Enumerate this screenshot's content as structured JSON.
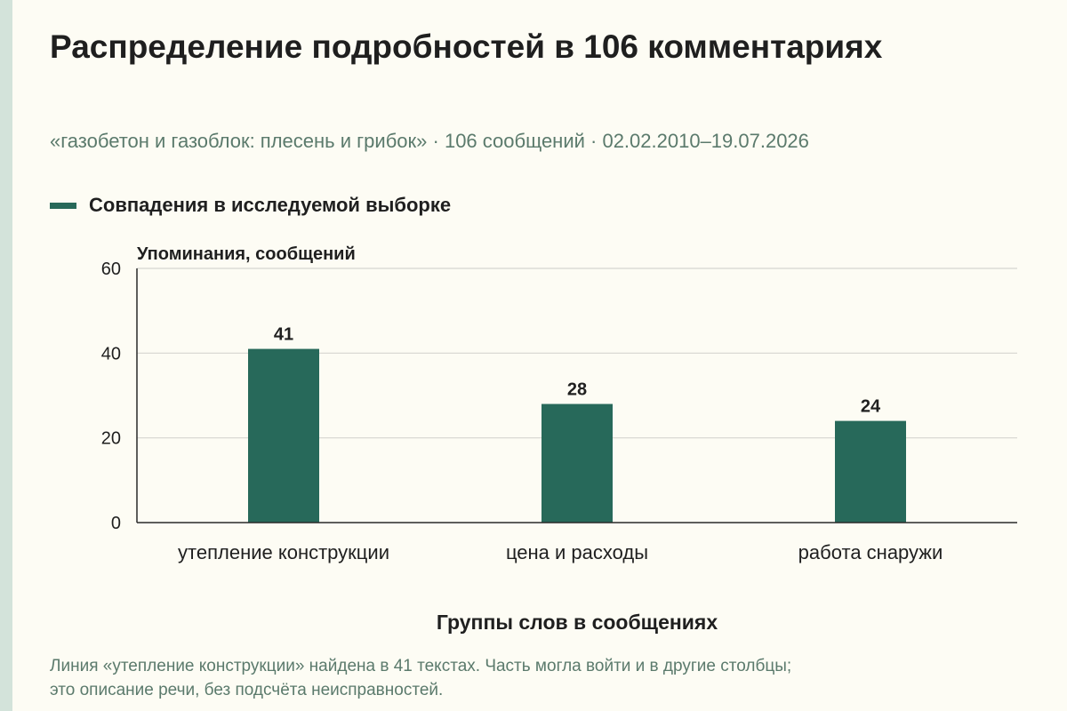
{
  "header": {
    "title": "Распределение подробностей в 106 комментариях",
    "subtitle": "«газобетон и газоблок: плесень и грибок» · 106 сообщений · 02.02.2010–19.07.2026"
  },
  "legend": {
    "label": "Совпадения в исследуемой выборке",
    "color": "#27695a"
  },
  "colors": {
    "bar": "#27695a",
    "grid": "#d6d6d0",
    "axis": "#2a2a2a",
    "text": "#1f1f1f",
    "muted": "#5b7a6c"
  },
  "chart_data": {
    "type": "bar",
    "categories": [
      "утепление конструкции",
      "цена и расходы",
      "работа снаружи"
    ],
    "series": [
      {
        "name": "Совпадения в исследуемой выборке",
        "values": [
          41,
          28,
          24
        ]
      }
    ],
    "data_labels": [
      "41",
      "28",
      "24"
    ],
    "ylabel": "Упоминания, сообщений",
    "xlabel": "Группы слов в сообщениях",
    "ylim": [
      0,
      60
    ],
    "yticks": [
      0,
      20,
      40,
      60
    ],
    "grid": true
  },
  "footnote": {
    "line1": "Линия «утепление конструкции» найдена в 41 текстах. Часть могла войти и в другие столбцы;",
    "line2": "это описание речи, без подсчёта неисправностей."
  }
}
